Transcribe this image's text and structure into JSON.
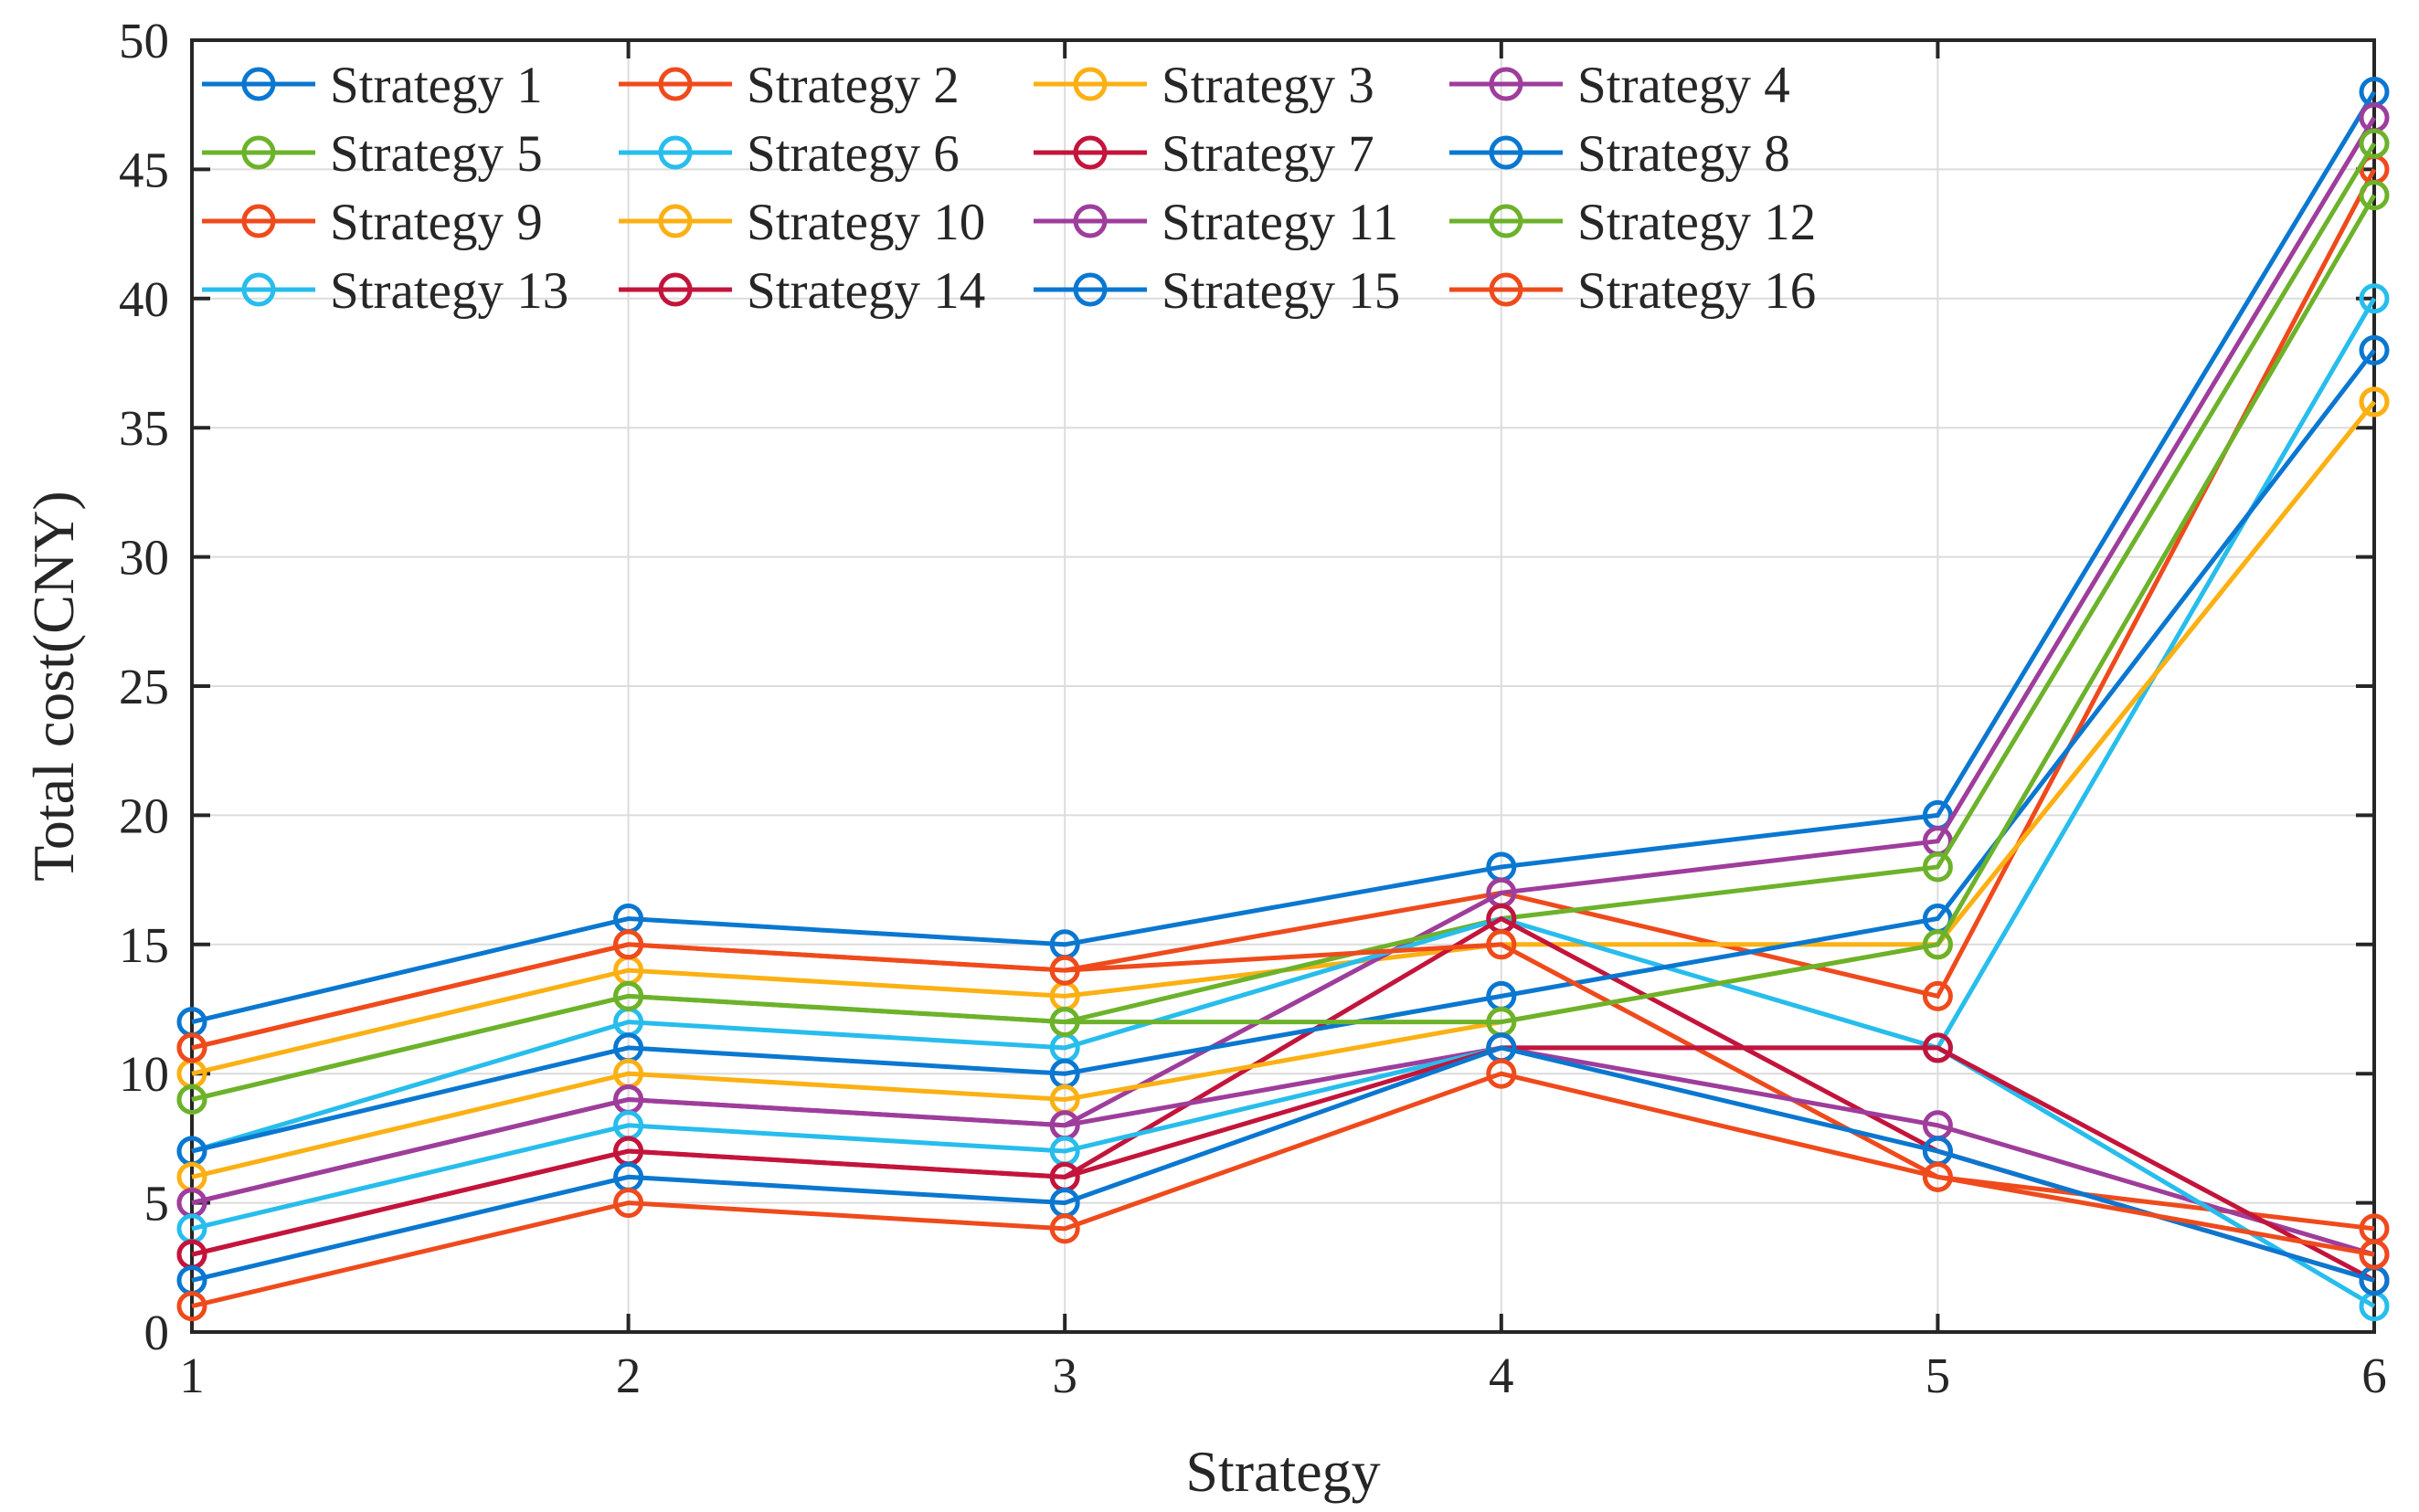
{
  "figure": {
    "xlabel": "Strategy",
    "ylabel": "Total cost(CNY)"
  },
  "chart_data": {
    "type": "line",
    "title": "",
    "xlabel": "Strategy",
    "ylabel": "Total cost(CNY)",
    "x": [
      1,
      2,
      3,
      4,
      5,
      6
    ],
    "xticks": [
      1,
      2,
      3,
      4,
      5,
      6
    ],
    "yticks": [
      0,
      5,
      10,
      15,
      20,
      25,
      30,
      35,
      40,
      45,
      50
    ],
    "xlim": [
      1,
      6
    ],
    "ylim": [
      0,
      50
    ],
    "grid": true,
    "legend_position": "top-left-inside",
    "legend_columns": 4,
    "background_color": "#ffffff",
    "axis_color": "#262626",
    "grid_color": "#dcdcdc",
    "marker": "open-circle",
    "series": [
      {
        "name": "Strategy 1",
        "color": "#0a77d0",
        "values": [
          12,
          16,
          15,
          18,
          20,
          48
        ]
      },
      {
        "name": "Strategy 2",
        "color": "#ef4a1c",
        "values": [
          11,
          15,
          14,
          17,
          13,
          45
        ]
      },
      {
        "name": "Strategy 3",
        "color": "#fbb013",
        "values": [
          10,
          14,
          13,
          15,
          15,
          36
        ]
      },
      {
        "name": "Strategy 4",
        "color": "#9e3d9b",
        "values": [
          5,
          9,
          8,
          17,
          19,
          47
        ]
      },
      {
        "name": "Strategy 5",
        "color": "#6cb22a",
        "values": [
          9,
          13,
          12,
          16,
          18,
          46
        ]
      },
      {
        "name": "Strategy 6",
        "color": "#27bdec",
        "values": [
          7,
          12,
          11,
          16,
          11,
          40
        ]
      },
      {
        "name": "Strategy 7",
        "color": "#c3143b",
        "values": [
          3,
          7,
          6,
          16,
          7,
          2
        ]
      },
      {
        "name": "Strategy 8",
        "color": "#0a77d0",
        "values": [
          7,
          11,
          10,
          13,
          16,
          38
        ]
      },
      {
        "name": "Strategy 9",
        "color": "#ef4a1c",
        "values": [
          11,
          15,
          14,
          15,
          6,
          4
        ]
      },
      {
        "name": "Strategy 10",
        "color": "#fbb013",
        "values": [
          6,
          10,
          9,
          12,
          15,
          36
        ]
      },
      {
        "name": "Strategy 11",
        "color": "#9e3d9b",
        "values": [
          5,
          9,
          8,
          11,
          8,
          3
        ]
      },
      {
        "name": "Strategy 12",
        "color": "#6cb22a",
        "values": [
          9,
          13,
          12,
          12,
          15,
          44
        ]
      },
      {
        "name": "Strategy 13",
        "color": "#27bdec",
        "values": [
          4,
          8,
          7,
          11,
          11,
          1
        ]
      },
      {
        "name": "Strategy 14",
        "color": "#c3143b",
        "values": [
          3,
          7,
          6,
          11,
          11,
          2
        ]
      },
      {
        "name": "Strategy 15",
        "color": "#0a77d0",
        "values": [
          2,
          6,
          5,
          11,
          7,
          2
        ]
      },
      {
        "name": "Strategy 16",
        "color": "#ef4a1c",
        "values": [
          1,
          5,
          4,
          10,
          6,
          3
        ]
      }
    ]
  }
}
